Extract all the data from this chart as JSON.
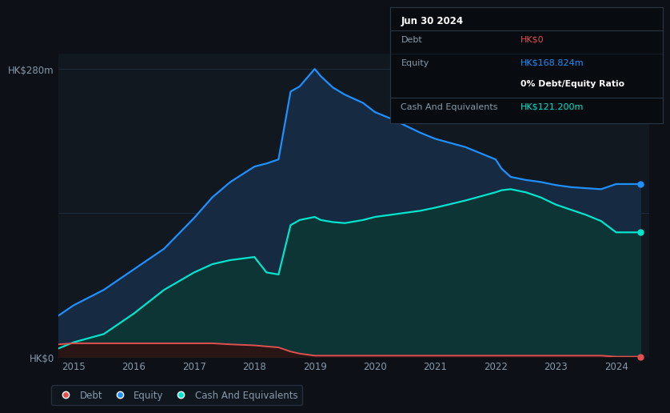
{
  "background_color": "#0d1117",
  "plot_bg_color": "#111820",
  "title_label": "HK$280m",
  "y_label_bottom": "HK$0",
  "xlabel_ticks": [
    "2015",
    "2016",
    "2017",
    "2018",
    "2019",
    "2020",
    "2021",
    "2022",
    "2023",
    "2024"
  ],
  "years": [
    2014.75,
    2015.0,
    2015.5,
    2016.0,
    2016.5,
    2017.0,
    2017.3,
    2017.6,
    2018.0,
    2018.2,
    2018.4,
    2018.6,
    2018.75,
    2019.0,
    2019.1,
    2019.3,
    2019.5,
    2019.8,
    2020.0,
    2020.25,
    2020.5,
    2020.75,
    2021.0,
    2021.5,
    2022.0,
    2022.1,
    2022.25,
    2022.5,
    2022.75,
    2023.0,
    2023.25,
    2023.5,
    2023.75,
    2024.0,
    2024.4
  ],
  "equity": [
    40,
    50,
    65,
    85,
    105,
    135,
    155,
    170,
    185,
    188,
    192,
    258,
    263,
    280,
    273,
    262,
    255,
    247,
    238,
    232,
    225,
    218,
    212,
    204,
    192,
    183,
    175,
    172,
    170,
    167,
    165,
    164,
    163,
    168,
    168
  ],
  "cash": [
    8,
    14,
    22,
    42,
    65,
    82,
    90,
    94,
    97,
    82,
    80,
    128,
    133,
    136,
    133,
    131,
    130,
    133,
    136,
    138,
    140,
    142,
    145,
    152,
    160,
    162,
    163,
    160,
    155,
    148,
    143,
    138,
    132,
    121,
    121
  ],
  "debt": [
    12,
    13,
    13,
    13,
    13,
    13,
    13,
    12,
    11,
    10,
    9,
    5,
    3,
    1,
    1,
    1,
    1,
    1,
    1,
    1,
    1,
    1,
    1,
    1,
    1,
    1,
    1,
    1,
    1,
    1,
    1,
    1,
    1,
    0,
    0
  ],
  "equity_color": "#1e90ff",
  "cash_color": "#00e5cc",
  "debt_color": "#e05050",
  "equity_fill": "#162a42",
  "cash_fill": "#0d3535",
  "debt_fill": "#2a1515",
  "grid_color": "#1e2d3d",
  "text_color": "#8899aa",
  "ylim": [
    0,
    295
  ],
  "xlim": [
    2014.75,
    2024.55
  ],
  "tooltip_bg": "#080c10",
  "tooltip_border": "#2a3545",
  "tooltip_title": "Jun 30 2024",
  "tooltip_debt_label": "Debt",
  "tooltip_debt_value": "HK$0",
  "tooltip_equity_label": "Equity",
  "tooltip_equity_value": "HK$168.824m",
  "tooltip_ratio_value": "0% Debt/Equity Ratio",
  "tooltip_cash_label": "Cash And Equivalents",
  "tooltip_cash_value": "HK$121.200m",
  "legend_debt": "Debt",
  "legend_equity": "Equity",
  "legend_cash": "Cash And Equivalents"
}
